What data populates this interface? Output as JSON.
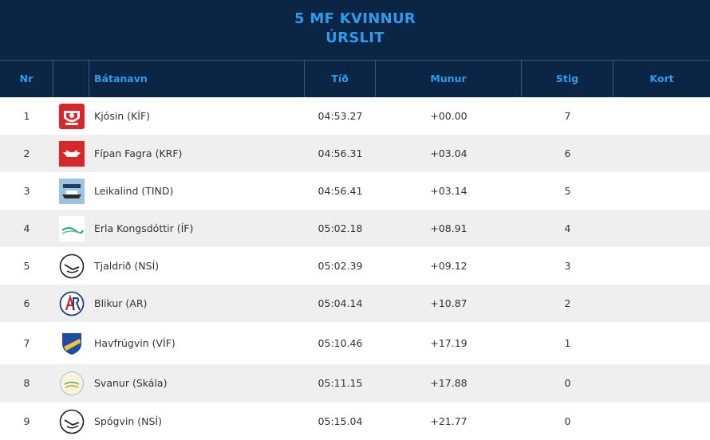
{
  "header": {
    "title": "5 MF KVINNUR",
    "subtitle": "ÚRSLIT"
  },
  "columns": {
    "nr": "Nr",
    "boat": "Bátanavn",
    "time": "Tíð",
    "diff": "Munur",
    "points": "Stig",
    "card": "Kort"
  },
  "rows": [
    {
      "nr": "1",
      "boat": "Kjósin (KÍF)",
      "time": "04:53.27",
      "diff": "+00.00",
      "points": "7",
      "logo": "kif-club-logo"
    },
    {
      "nr": "2",
      "boat": "Fípan Fagra (KRF)",
      "time": "04:56.31",
      "diff": "+03.04",
      "points": "6",
      "logo": "krf-club-logo"
    },
    {
      "nr": "3",
      "boat": "Leikalind (TIND)",
      "time": "04:56.41",
      "diff": "+03.14",
      "points": "5",
      "logo": "tind-club-logo"
    },
    {
      "nr": "4",
      "boat": "Erla Kongsdóttir (ÍF)",
      "time": "05:02.18",
      "diff": "+08.91",
      "points": "4",
      "logo": "if-club-logo"
    },
    {
      "nr": "5",
      "boat": "Tjaldrið (NSÍ)",
      "time": "05:02.39",
      "diff": "+09.12",
      "points": "3",
      "logo": "nsi-club-logo"
    },
    {
      "nr": "6",
      "boat": "Blikur (AR)",
      "time": "05:04.14",
      "diff": "+10.87",
      "points": "2",
      "logo": "ar-club-logo"
    },
    {
      "nr": "7",
      "boat": "Havfrúgvin (VÍF)",
      "time": "05:10.46",
      "diff": "+17.19",
      "points": "1",
      "logo": "vif-club-logo"
    },
    {
      "nr": "8",
      "boat": "Svanur (Skála)",
      "time": "05:11.15",
      "diff": "+17.88",
      "points": "0",
      "logo": "skala-club-logo"
    },
    {
      "nr": "9",
      "boat": "Spógvin (NSÍ)",
      "time": "05:15.04",
      "diff": "+21.77",
      "points": "0",
      "logo": "nsi-club-logo"
    }
  ],
  "colors": {
    "header_bg": "#0b2545",
    "accent": "#2e9bf0",
    "row_alt": "#efefef"
  }
}
